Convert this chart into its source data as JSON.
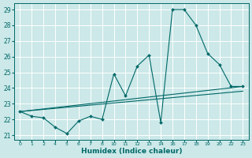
{
  "xlabel": "Humidex (Indice chaleur)",
  "bg_color": "#cce8e8",
  "grid_color": "#ffffff",
  "line_color": "#006868",
  "tick_labels": [
    "0",
    "1",
    "2",
    "4",
    "5",
    "6",
    "7",
    "8",
    "10",
    "11",
    "12",
    "13",
    "14",
    "16",
    "17",
    "18",
    "19",
    "20",
    "22",
    "23"
  ],
  "line1_y": [
    22.5,
    22.2,
    22.1,
    21.5,
    21.1,
    21.9,
    22.2,
    22.0,
    24.9,
    23.5,
    25.4,
    26.1,
    21.8,
    29.0,
    29.0,
    28.0,
    26.2,
    25.5,
    24.1,
    24.1
  ],
  "line2_y": [
    22.5,
    24.1
  ],
  "line3_y": [
    22.5,
    23.8
  ],
  "ylim_min": 20.7,
  "ylim_max": 29.4,
  "yticks": [
    21,
    22,
    23,
    24,
    25,
    26,
    27,
    28,
    29
  ]
}
